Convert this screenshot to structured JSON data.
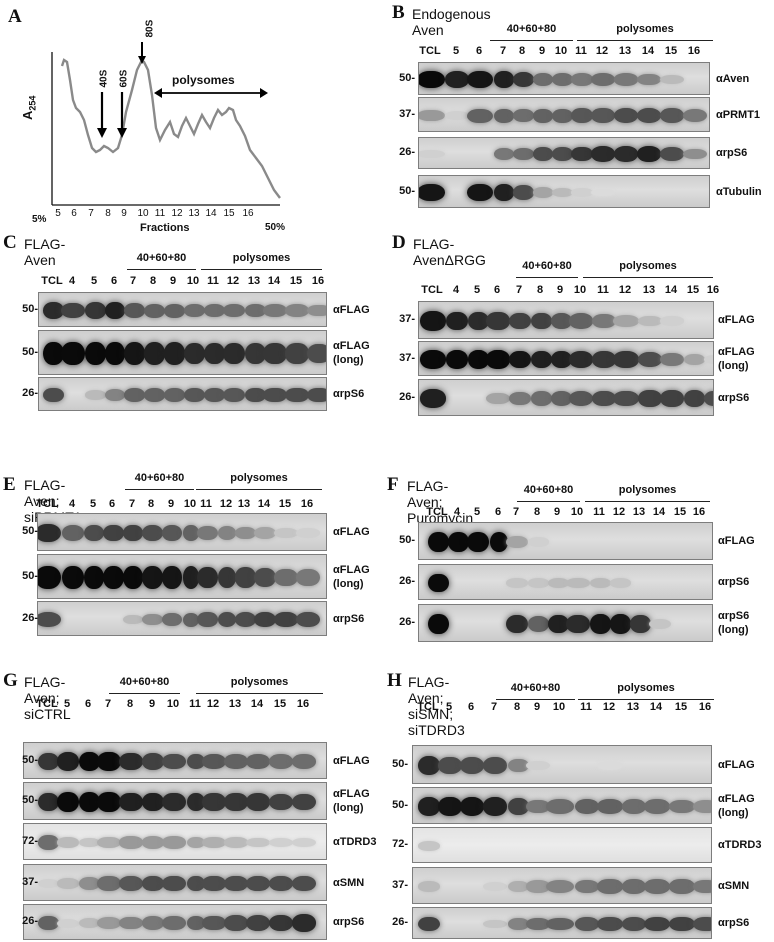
{
  "panelA": {
    "letter": "A",
    "ylabel": "A",
    "ylabel_sub": "254",
    "xlabel": "Fractions",
    "left_pct": "5%",
    "right_pct": "50%",
    "peak_labels": [
      "40S",
      "60S",
      "80S"
    ],
    "polysomes_label": "polysomes",
    "fraction_ticks": [
      "5",
      "6",
      "7",
      "8",
      "9",
      "10",
      "11",
      "12",
      "13",
      "14",
      "15",
      "16"
    ]
  },
  "panelB": {
    "letter": "B",
    "title": "Endogenous Aven",
    "lanes": [
      "TCL",
      "5",
      "6",
      "7",
      "8",
      "9",
      "10",
      "11",
      "12",
      "13",
      "14",
      "15",
      "16"
    ],
    "group1": "40+60+80",
    "group2": "polysomes",
    "rows": [
      {
        "mw": "50-",
        "antibody": "αAven"
      },
      {
        "mw": "37-",
        "antibody": "αPRMT1"
      },
      {
        "mw": "26-",
        "antibody": "αrpS6"
      },
      {
        "mw": "50-",
        "antibody": "αTubulin"
      }
    ]
  },
  "panelC": {
    "letter": "C",
    "title": "FLAG-Aven",
    "lanes": [
      "TCL",
      "4",
      "5",
      "6",
      "7",
      "8",
      "9",
      "10",
      "11",
      "12",
      "13",
      "14",
      "15",
      "16"
    ],
    "group1": "40+60+80",
    "group2": "polysomes",
    "rows": [
      {
        "mw": "50-",
        "antibody": "αFLAG"
      },
      {
        "mw": "50-",
        "antibody": "αFLAG",
        "antibody2": "(long)"
      },
      {
        "mw": "26-",
        "antibody": "αrpS6"
      }
    ]
  },
  "panelD": {
    "letter": "D",
    "title": "FLAG-AvenΔRGG",
    "lanes": [
      "TCL",
      "4",
      "5",
      "6",
      "7",
      "8",
      "9",
      "10",
      "11",
      "12",
      "13",
      "14",
      "15",
      "16"
    ],
    "group1": "40+60+80",
    "group2": "polysomes",
    "rows": [
      {
        "mw": "37-",
        "antibody": "αFLAG"
      },
      {
        "mw": "37-",
        "antibody": "αFLAG",
        "antibody2": "(long)"
      },
      {
        "mw": "26-",
        "antibody": "αrpS6"
      }
    ]
  },
  "panelE": {
    "letter": "E",
    "title": "FLAG-Aven; siPRMT1",
    "lanes": [
      "TCL",
      "4",
      "5",
      "6",
      "7",
      "8",
      "9",
      "10",
      "11",
      "12",
      "13",
      "14",
      "15",
      "16"
    ],
    "group1": "40+60+80",
    "group2": "polysomes",
    "rows": [
      {
        "mw": "50-",
        "antibody": "αFLAG"
      },
      {
        "mw": "50-",
        "antibody": "αFLAG",
        "antibody2": "(long)"
      },
      {
        "mw": "26-",
        "antibody": "αrpS6"
      }
    ]
  },
  "panelF": {
    "letter": "F",
    "title": "FLAG-Aven; Puromycin",
    "lanes": [
      "TCL",
      "4",
      "5",
      "6",
      "7",
      "8",
      "9",
      "10",
      "11",
      "12",
      "13",
      "14",
      "15",
      "16"
    ],
    "group1": "40+60+80",
    "group2": "polysomes",
    "rows": [
      {
        "mw": "50-",
        "antibody": "αFLAG"
      },
      {
        "mw": "26-",
        "antibody": "αrpS6"
      },
      {
        "mw": "26-",
        "antibody": "αrpS6",
        "antibody2": "(long)"
      }
    ]
  },
  "panelG": {
    "letter": "G",
    "title": "FLAG-Aven; siCTRL",
    "lanes": [
      "TCL",
      "5",
      "6",
      "7",
      "8",
      "9",
      "10",
      "11",
      "12",
      "13",
      "14",
      "15",
      "16"
    ],
    "group1": "40+60+80",
    "group2": "polysomes",
    "rows": [
      {
        "mw": "50-",
        "antibody": "αFLAG"
      },
      {
        "mw": "50-",
        "antibody": "αFLAG",
        "antibody2": "(long)"
      },
      {
        "mw": "72-",
        "antibody": "αTDRD3"
      },
      {
        "mw": "37-",
        "antibody": "αSMN"
      },
      {
        "mw": "26-",
        "antibody": "αrpS6"
      }
    ]
  },
  "panelH": {
    "letter": "H",
    "title": "FLAG-Aven; siSMN; siTDRD3",
    "lanes": [
      "TCL",
      "5",
      "6",
      "7",
      "8",
      "9",
      "10",
      "11",
      "12",
      "13",
      "14",
      "15",
      "16"
    ],
    "group1": "40+60+80",
    "group2": "polysomes",
    "rows": [
      {
        "mw": "50-",
        "antibody": "αFLAG"
      },
      {
        "mw": "50-",
        "antibody": "αFLAG",
        "antibody2": "(long)"
      },
      {
        "mw": "72-",
        "antibody": "αTDRD3"
      },
      {
        "mw": "37-",
        "antibody": "αSMN"
      },
      {
        "mw": "26-",
        "antibody": "αrpS6"
      }
    ]
  }
}
